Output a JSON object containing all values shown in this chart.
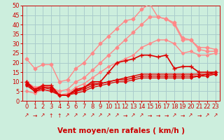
{
  "xlabel": "Vent moyen/en rafales ( km/h )",
  "xlim": [
    -0.5,
    23.5
  ],
  "ylim": [
    0,
    50
  ],
  "yticks": [
    0,
    5,
    10,
    15,
    20,
    25,
    30,
    35,
    40,
    45,
    50
  ],
  "xticks": [
    0,
    1,
    2,
    3,
    4,
    5,
    6,
    7,
    8,
    9,
    10,
    11,
    12,
    13,
    14,
    15,
    16,
    17,
    18,
    19,
    20,
    21,
    22,
    23
  ],
  "bg_color": "#cceedd",
  "grid_color": "#aacccc",
  "series": [
    {
      "color": "#ff8888",
      "lw": 1.0,
      "marker": "D",
      "ms": 2.5,
      "data_x": [
        0,
        1,
        2,
        3,
        4,
        5,
        6,
        7,
        8,
        9,
        10,
        11,
        12,
        13,
        14,
        15,
        16,
        17,
        18,
        19,
        20,
        21,
        22,
        23
      ],
      "data_y": [
        22,
        17,
        19,
        19,
        10,
        11,
        17,
        20,
        25,
        30,
        34,
        38,
        42,
        43,
        48,
        51,
        44,
        43,
        41,
        33,
        32,
        28,
        28,
        27
      ]
    },
    {
      "color": "#ff8888",
      "lw": 1.0,
      "marker": "D",
      "ms": 2.5,
      "data_x": [
        0,
        1,
        2,
        3,
        4,
        5,
        6,
        7,
        8,
        9,
        10,
        11,
        12,
        13,
        14,
        15,
        16,
        17,
        18,
        19,
        20,
        21,
        22,
        23
      ],
      "data_y": [
        10,
        7,
        8,
        7,
        5,
        6,
        10,
        12,
        16,
        20,
        24,
        28,
        32,
        36,
        40,
        44,
        44,
        43,
        40,
        32,
        32,
        27,
        26,
        26
      ]
    },
    {
      "color": "#ff8888",
      "lw": 1.0,
      "marker": "D",
      "ms": 2.0,
      "data_x": [
        0,
        1,
        2,
        3,
        4,
        5,
        6,
        7,
        8,
        9,
        10,
        11,
        12,
        13,
        14,
        15,
        16,
        17,
        18,
        19,
        20,
        21,
        22,
        23
      ],
      "data_y": [
        5,
        4,
        6,
        5,
        3,
        4,
        7,
        9,
        12,
        15,
        18,
        20,
        22,
        24,
        28,
        30,
        32,
        32,
        30,
        25,
        26,
        24,
        24,
        25
      ]
    },
    {
      "color": "#dd0000",
      "lw": 1.2,
      "marker": "+",
      "ms": 4,
      "data_x": [
        0,
        1,
        2,
        3,
        4,
        5,
        6,
        7,
        8,
        9,
        10,
        11,
        12,
        13,
        14,
        15,
        16,
        17,
        18,
        19,
        20,
        21,
        22,
        23
      ],
      "data_y": [
        10,
        6,
        8,
        8,
        3,
        3,
        6,
        7,
        10,
        10,
        15,
        20,
        21,
        22,
        24,
        24,
        23,
        24,
        17,
        18,
        18,
        15,
        15,
        15
      ]
    },
    {
      "color": "#dd0000",
      "lw": 1.0,
      "marker": "D",
      "ms": 1.8,
      "data_x": [
        0,
        1,
        2,
        3,
        4,
        5,
        6,
        7,
        8,
        9,
        10,
        11,
        12,
        13,
        14,
        15,
        16,
        17,
        18,
        19,
        20,
        21,
        22,
        23
      ],
      "data_y": [
        9,
        6,
        7,
        7,
        3,
        3,
        5,
        7,
        9,
        9,
        10,
        11,
        12,
        13,
        14,
        14,
        14,
        14,
        14,
        14,
        14,
        14,
        14,
        15
      ]
    },
    {
      "color": "#dd0000",
      "lw": 1.0,
      "marker": "D",
      "ms": 1.8,
      "data_x": [
        0,
        1,
        2,
        3,
        4,
        5,
        6,
        7,
        8,
        9,
        10,
        11,
        12,
        13,
        14,
        15,
        16,
        17,
        18,
        19,
        20,
        21,
        22,
        23
      ],
      "data_y": [
        9,
        5,
        7,
        6,
        3,
        3,
        5,
        6,
        8,
        9,
        10,
        11,
        11,
        12,
        13,
        13,
        13,
        13,
        13,
        13,
        13,
        13,
        14,
        14
      ]
    },
    {
      "color": "#dd0000",
      "lw": 0.9,
      "marker": "D",
      "ms": 1.8,
      "data_x": [
        0,
        1,
        2,
        3,
        4,
        5,
        6,
        7,
        8,
        9,
        10,
        11,
        12,
        13,
        14,
        15,
        16,
        17,
        18,
        19,
        20,
        21,
        22,
        23
      ],
      "data_y": [
        8,
        5,
        6,
        5,
        3,
        3,
        4,
        5,
        7,
        8,
        9,
        10,
        10,
        11,
        12,
        12,
        12,
        12,
        12,
        12,
        12,
        13,
        13,
        14
      ]
    }
  ],
  "arrows": [
    "↗",
    "→",
    "↗",
    "↑",
    "↑",
    "↗",
    "↗",
    "↗",
    "↗",
    "↗",
    "↗",
    "↗",
    "→",
    "↗",
    "↗",
    "→",
    "→",
    "→",
    "↗",
    "→",
    "↗",
    "→",
    "↗",
    "↗"
  ],
  "xlabel_color": "#cc0000",
  "xlabel_fontsize": 7.5,
  "tick_fontsize": 6,
  "tick_color": "#cc0000",
  "ytick_fontsize": 6,
  "spine_color": "#cc0000"
}
